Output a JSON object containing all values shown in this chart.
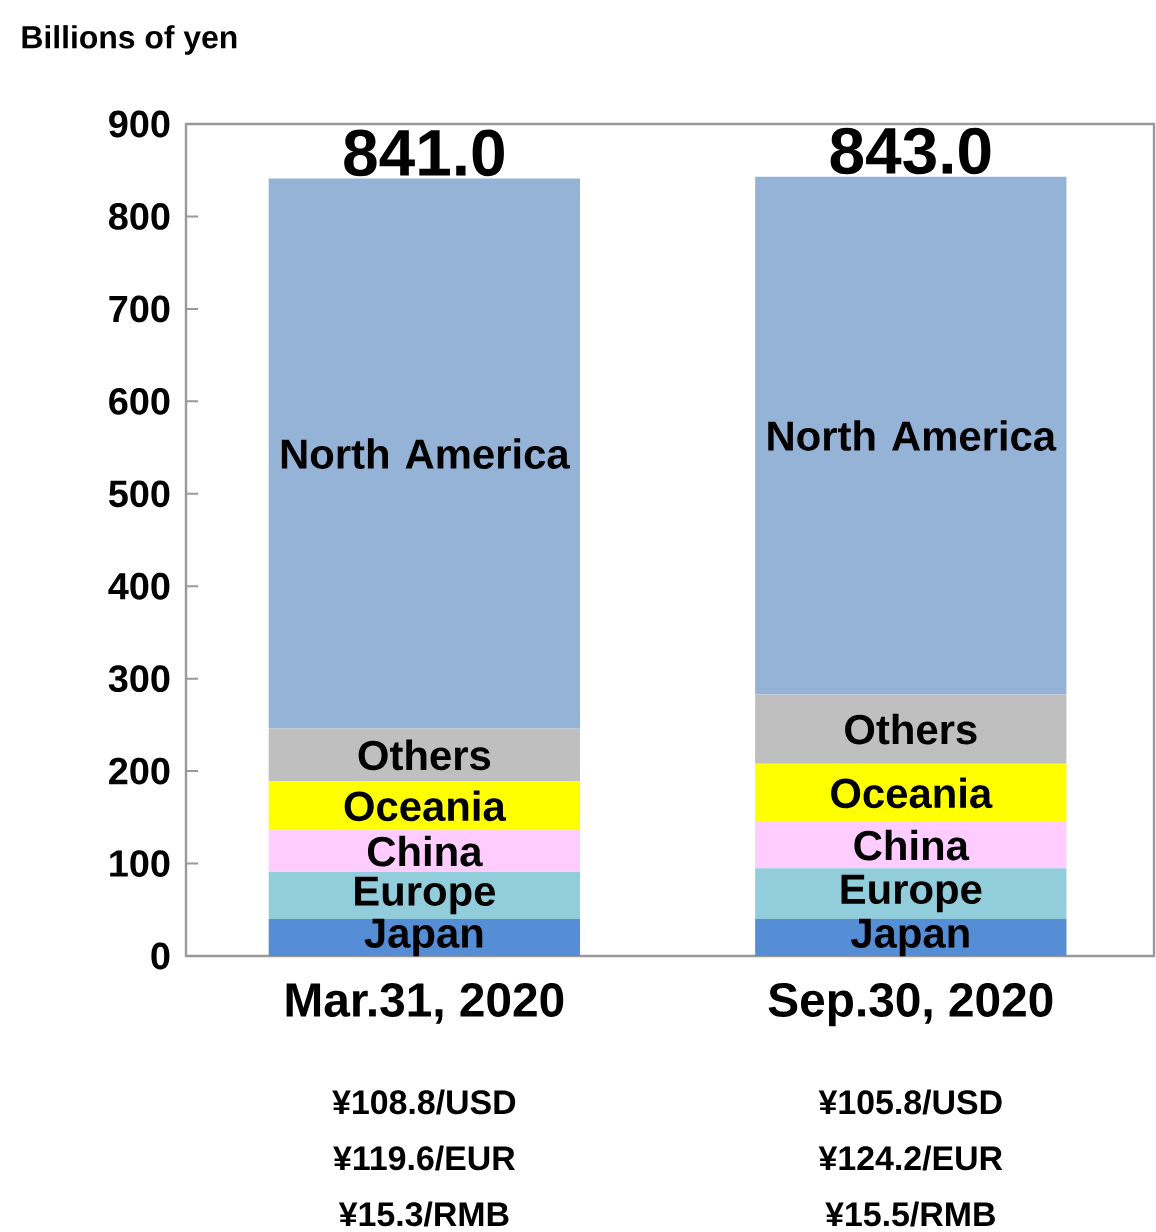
{
  "chart_data": {
    "type": "bar",
    "stacked": true,
    "ylabel": "Billions of yen",
    "categories": [
      "Mar.31, 2020",
      "Sep.30, 2020"
    ],
    "series": [
      {
        "name": "Japan",
        "color": "#558ed5",
        "values": [
          40,
          40
        ]
      },
      {
        "name": "Europe",
        "color": "#92cddc",
        "values": [
          51,
          55
        ]
      },
      {
        "name": "China",
        "color": "#ffccff",
        "values": [
          45,
          50
        ]
      },
      {
        "name": "Oceania",
        "color": "#ffff00",
        "values": [
          53,
          63
        ]
      },
      {
        "name": "Others",
        "color": "#bfbfbf",
        "values": [
          57,
          75
        ]
      },
      {
        "name": "North America",
        "color": "#95b3d7",
        "values": [
          595,
          560
        ]
      }
    ],
    "totals": [
      "841.0",
      "843.0"
    ],
    "ylim": [
      0,
      900
    ],
    "yticks": [
      0,
      100,
      200,
      300,
      400,
      500,
      600,
      700,
      800,
      900
    ],
    "grid": false,
    "annotations": [
      "¥108.8/USD",
      "¥119.6/EUR",
      "¥15.3/RMB",
      "¥105.8/USD",
      "¥124.2/EUR",
      "¥15.5/RMB"
    ]
  }
}
